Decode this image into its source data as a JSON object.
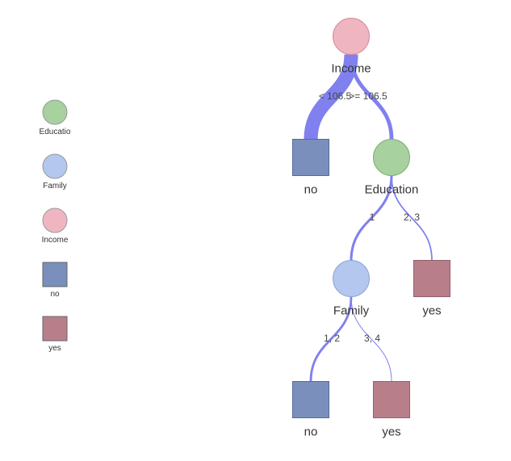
{
  "legend": {
    "items": [
      {
        "label": "Educatio",
        "shape": "circle",
        "color": "#a7d19f"
      },
      {
        "label": "Family",
        "shape": "circle",
        "color": "#b3c7ef"
      },
      {
        "label": "Income",
        "shape": "circle",
        "color": "#efb6c1"
      },
      {
        "label": "no",
        "shape": "box",
        "color": "#7a8fbb"
      },
      {
        "label": "yes",
        "shape": "box",
        "color": "#b87f8b"
      }
    ]
  },
  "tree": {
    "edge_color": "#8080ee",
    "nodes": {
      "income": {
        "label": "Income",
        "shape": "circle",
        "color": "#efb6c1",
        "border": "#d48b99"
      },
      "leaf_no_1": {
        "label": "no",
        "shape": "box",
        "color": "#7a8fbb",
        "border": "#586a94"
      },
      "education": {
        "label": "Education",
        "shape": "circle",
        "color": "#a7d19f",
        "border": "#7fae76"
      },
      "family": {
        "label": "Family",
        "shape": "circle",
        "color": "#b3c7ef",
        "border": "#8ea5d4"
      },
      "leaf_yes_1": {
        "label": "yes",
        "shape": "box",
        "color": "#b87f8b",
        "border": "#915f6a"
      },
      "leaf_no_2": {
        "label": "no",
        "shape": "box",
        "color": "#7a8fbb",
        "border": "#586a94"
      },
      "leaf_yes_2": {
        "label": "yes",
        "shape": "box",
        "color": "#b87f8b",
        "border": "#915f6a"
      }
    },
    "edges": [
      {
        "from": "income",
        "to": "leaf_no_1",
        "label": "< 106.5",
        "weight": 0.78
      },
      {
        "from": "income",
        "to": "education",
        "label": ">= 106.5",
        "weight": 0.22
      },
      {
        "from": "education",
        "to": "family",
        "label": "1",
        "weight": 0.14
      },
      {
        "from": "education",
        "to": "leaf_yes_1",
        "label": "2, 3",
        "weight": 0.08
      },
      {
        "from": "family",
        "to": "leaf_no_2",
        "label": "1, 2",
        "weight": 0.13
      },
      {
        "from": "family",
        "to": "leaf_yes_2",
        "label": "3, 4",
        "weight": 0.02
      }
    ]
  }
}
